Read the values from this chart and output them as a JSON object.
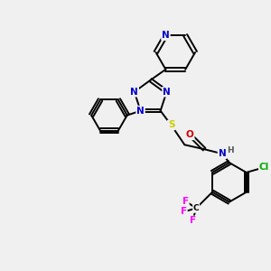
{
  "background_color": "#f0f0f0",
  "atom_colors": {
    "N": "#0000cc",
    "O": "#cc0000",
    "S": "#cccc00",
    "Cl": "#00aa00",
    "F": "#ff00ff",
    "C": "#000000",
    "H": "#555555"
  },
  "bond_color": "#000000",
  "figsize": [
    3.0,
    3.0
  ],
  "dpi": 100,
  "lw": 1.4,
  "fs": 7.5
}
